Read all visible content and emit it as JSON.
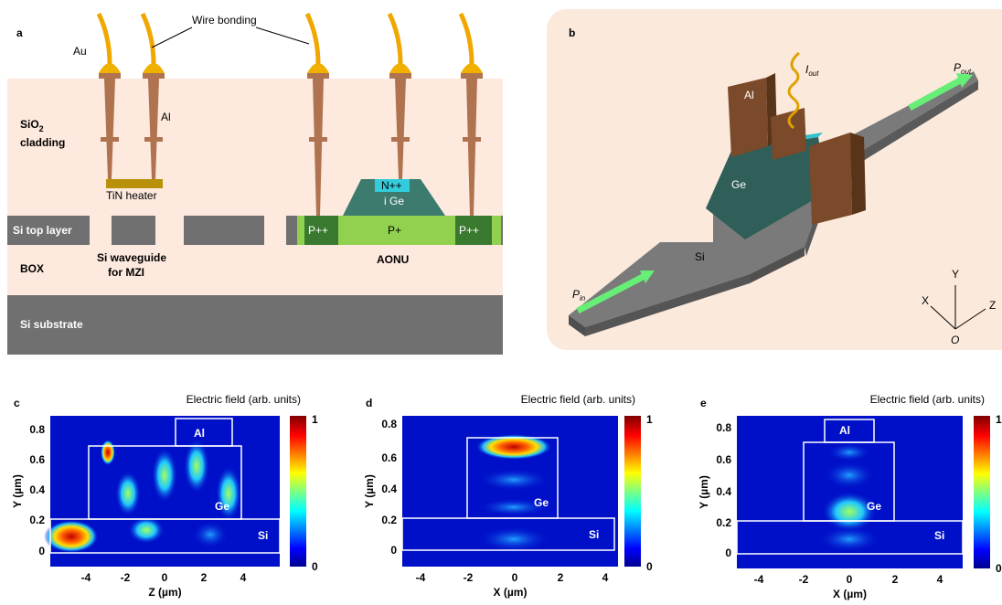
{
  "panel_a": {
    "label": "a",
    "wire_bonding": "Wire bonding",
    "au": "Au",
    "al": "Al",
    "sio2": "SiO",
    "sio2_sub": "2",
    "cladding": "cladding",
    "tin_heater": "TiN heater",
    "n_pp": "N++",
    "i_ge": "i Ge",
    "si_top_layer": "Si top layer",
    "p_pp_left": "P++",
    "p_plus": "P+",
    "p_pp_right": "P++",
    "si_waveguide": [
      "Si waveguide",
      "for MZI"
    ],
    "aonu": "AONU",
    "box": "BOX",
    "si_substrate": "Si substrate"
  },
  "panel_b": {
    "label": "b",
    "i_out": "I",
    "i_out_sub": "out",
    "p_out": "P",
    "p_out_sub": "out",
    "al": "Al",
    "ge": "Ge",
    "si": "Si",
    "p_in": "P",
    "p_in_sub": "in",
    "axis_y": "Y",
    "axis_x": "X",
    "axis_z": "Z",
    "axis_o": "O"
  },
  "field_panels": [
    {
      "label": "c",
      "colorbar_title": "Electric field (arb. units)",
      "colorbar_max": "1",
      "colorbar_min": "0",
      "y_axis_label": "Y (µm)",
      "x_axis_label": "Z (µm)",
      "yticks": [
        "0",
        "0.2",
        "0.4",
        "0.6",
        "0.8"
      ],
      "xticks": [
        "-4",
        "-2",
        "0",
        "2",
        "4"
      ],
      "regions": [
        "Al",
        "Ge",
        "Si"
      ]
    },
    {
      "label": "d",
      "colorbar_title": "Electric field (arb. units)",
      "colorbar_max": "1",
      "colorbar_min": "0",
      "y_axis_label": "Y (µm)",
      "x_axis_label": "X (µm)",
      "yticks": [
        "0",
        "0.2",
        "0.4",
        "0.6",
        "0.8"
      ],
      "xticks": [
        "-4",
        "-2",
        "0",
        "2",
        "4"
      ],
      "regions": [
        "Ge",
        "Si"
      ]
    },
    {
      "label": "e",
      "colorbar_title": "Electric field (arb. units)",
      "colorbar_max": "1",
      "colorbar_min": "0",
      "y_axis_label": "Y (µm)",
      "x_axis_label": "X (µm)",
      "yticks": [
        "0",
        "0.2",
        "0.4",
        "0.6",
        "0.8"
      ],
      "xticks": [
        "-4",
        "-2",
        "0",
        "2",
        "4"
      ],
      "regions": [
        "Al",
        "Ge",
        "Si"
      ]
    }
  ]
}
